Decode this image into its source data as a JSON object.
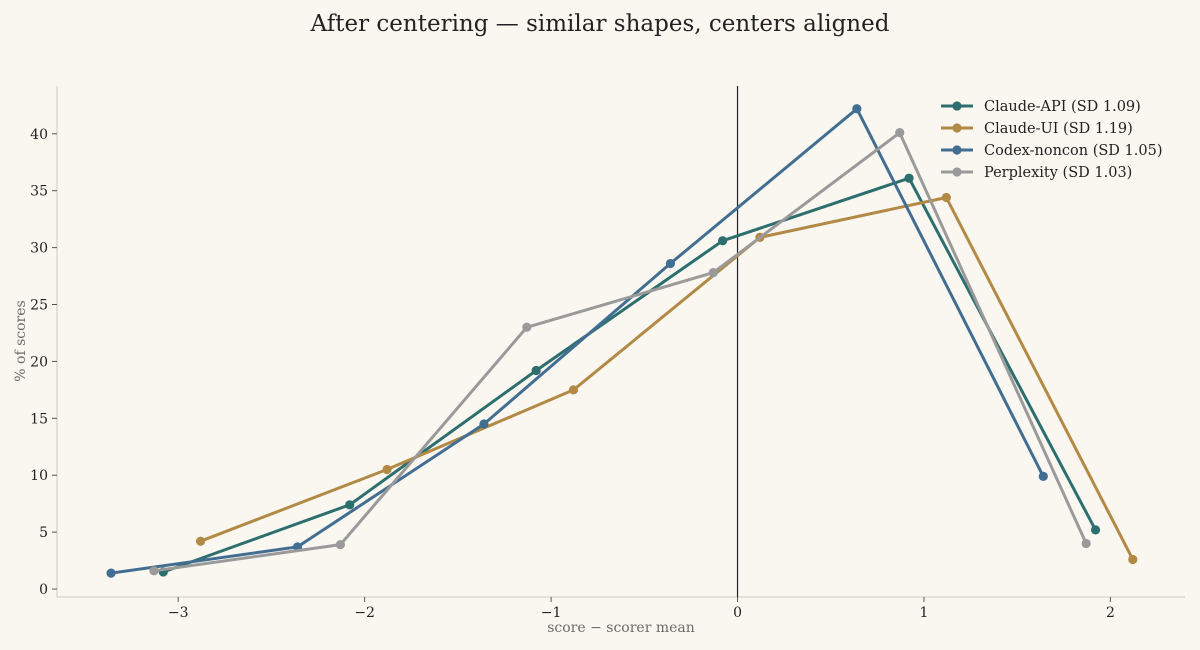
{
  "chart_data": {
    "type": "line",
    "title": "After centering — similar shapes, centers aligned",
    "xlabel": "score − scorer mean",
    "ylabel": "% of scores",
    "xlim": [
      -3.65,
      2.4
    ],
    "ylim": [
      -0.7,
      44.2
    ],
    "x_ticks": [
      -3,
      -2,
      -1,
      0,
      1,
      2
    ],
    "x_tick_labels": [
      "−3",
      "−2",
      "−1",
      "0",
      "1",
      "2"
    ],
    "y_ticks": [
      0,
      5,
      10,
      15,
      20,
      25,
      30,
      35,
      40
    ],
    "y_tick_labels": [
      "0",
      "5",
      "10",
      "15",
      "20",
      "25",
      "30",
      "35",
      "40"
    ],
    "grid": false,
    "vertical_reference_line": 0,
    "legend_position": "top-right",
    "series": [
      {
        "name": "Claude-API (SD 1.09)",
        "color": "#2d6e6e",
        "points": [
          [
            -3.08,
            1.5
          ],
          [
            -2.08,
            7.4
          ],
          [
            -1.08,
            19.2
          ],
          [
            -0.08,
            30.6
          ],
          [
            0.92,
            36.1
          ],
          [
            1.92,
            5.2
          ]
        ]
      },
      {
        "name": "Claude-UI (SD 1.19)",
        "color": "#b38a45",
        "points": [
          [
            -2.88,
            4.2
          ],
          [
            -1.88,
            10.5
          ],
          [
            -0.88,
            17.5
          ],
          [
            0.12,
            30.9
          ],
          [
            1.12,
            34.4
          ],
          [
            2.12,
            2.6
          ]
        ]
      },
      {
        "name": "Codex-noncon (SD 1.05)",
        "color": "#426e92",
        "points": [
          [
            -3.36,
            1.4
          ],
          [
            -2.36,
            3.7
          ],
          [
            -1.36,
            14.5
          ],
          [
            -0.36,
            28.6
          ],
          [
            0.64,
            42.2
          ],
          [
            1.64,
            9.9
          ]
        ]
      },
      {
        "name": "Perplexity (SD 1.03)",
        "color": "#9a9a9a",
        "points": [
          [
            -3.13,
            1.6
          ],
          [
            -2.13,
            3.9
          ],
          [
            -1.13,
            23.0
          ],
          [
            -0.13,
            27.8
          ],
          [
            0.87,
            40.1
          ],
          [
            1.87,
            4.0
          ]
        ]
      }
    ]
  }
}
